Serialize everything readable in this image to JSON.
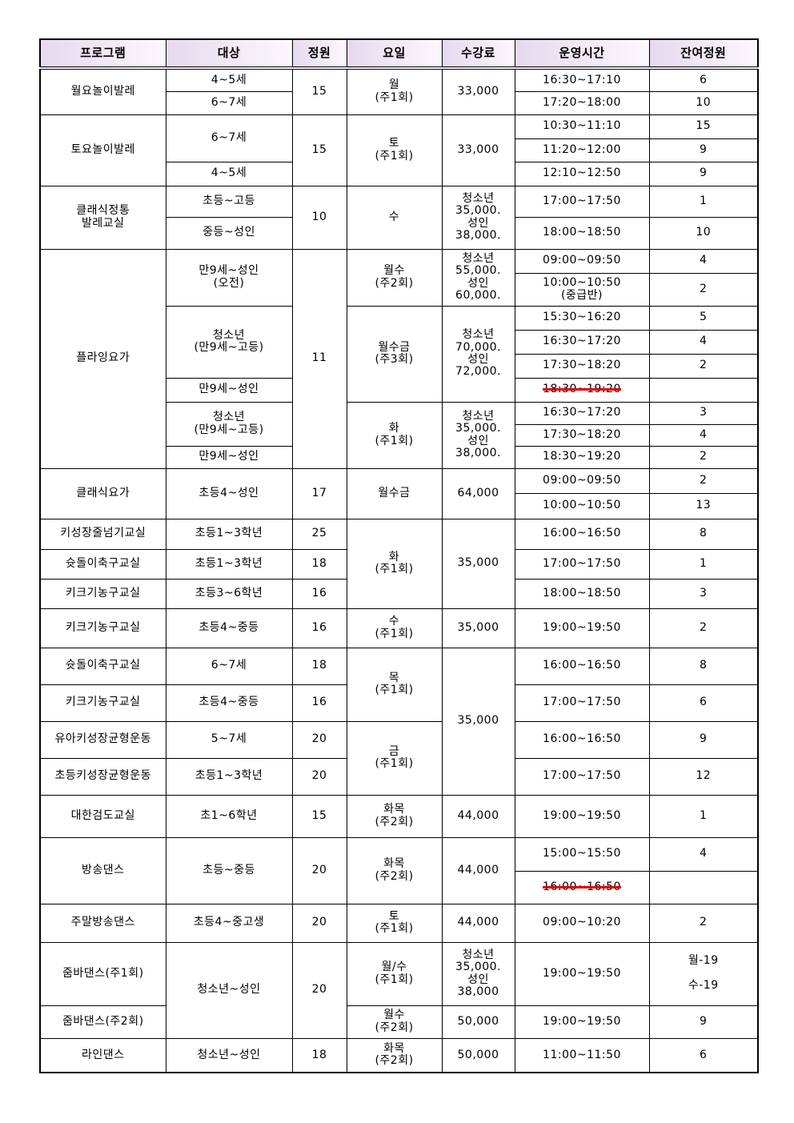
{
  "header": [
    "프로그램",
    "대상",
    "정원",
    "요일",
    "수강료",
    "운영시간",
    "잔여정원"
  ],
  "body": [
    [
      "월요놀이발레",
      "4~5세",
      "15",
      "월\n(주1회)",
      "33,000",
      "16:30~17:10",
      "6"
    ],
    [
      "6~7세",
      "17:20~18:00",
      "10"
    ],
    [
      "토요놀이발레",
      "6~7세",
      "15",
      "토\n(주1회)",
      "33,000",
      "10:30~11:10",
      "15"
    ],
    [
      "11:20~12:00",
      "9"
    ],
    [
      "4~5세",
      "12:10~12:50",
      "9"
    ],
    [
      "클래식정통\n발레교실",
      "초등~고등",
      "10",
      "수",
      "청소년\n35,000.\n성인\n38,000.",
      "17:00~17:50",
      "1"
    ],
    [
      "중등~성인",
      "18:00~18:50",
      "10"
    ],
    [
      "플라잉요가",
      "만9세~성인\n(오전)",
      "11",
      "월수\n(주2회)",
      "청소년\n55,000.\n성인\n60,000.",
      "09:00~09:50",
      "4"
    ],
    [
      "10:00~10:50\n(중급반)",
      "2"
    ],
    [
      "청소년\n(만9세~고등)",
      "월수금\n(주3회)",
      "청소년\n70,000.\n성인\n72,000.",
      "15:30~16:20",
      "5"
    ],
    [
      "16:30~17:20",
      "4"
    ],
    [
      "17:30~18:20",
      "2"
    ],
    [
      "만9세~성인",
      "18:30~19:20",
      ""
    ],
    [
      "청소년\n(만9세~고등)",
      "화\n(주1회)",
      "청소년\n35,000.\n성인\n38,000.",
      "16:30~17:20",
      "3"
    ],
    [
      "17:30~18:20",
      "4"
    ],
    [
      "만9세~성인",
      "18:30~19:20",
      "2"
    ],
    [
      "클래식요가",
      "초등4~성인",
      "17",
      "월수금",
      "64,000",
      "09:00~09:50",
      "2"
    ],
    [
      "10:00~10:50",
      "13"
    ],
    [
      "키성장줄넘기교실",
      "초등1~3학년",
      "25",
      "화\n(주1회)",
      "35,000",
      "16:00~16:50",
      "8"
    ],
    [
      "슛돌이축구교실",
      "초등1~3학년",
      "18",
      "17:00~17:50",
      "1"
    ],
    [
      "키크기농구교실",
      "초등3~6학년",
      "16",
      "18:00~18:50",
      "3"
    ],
    [
      "키크기농구교실",
      "초등4~중등",
      "16",
      "수\n(주1회)",
      "35,000",
      "19:00~19:50",
      "2"
    ],
    [
      "슛돌이축구교실",
      "6~7세",
      "18",
      "목\n(주1회)",
      "35,000",
      "16:00~16:50",
      "8"
    ],
    [
      "키크기농구교실",
      "초등4~중등",
      "16",
      "17:00~17:50",
      "6"
    ],
    [
      "유아키성장균형운동",
      "5~7세",
      "20",
      "금\n(주1회)",
      "16:00~16:50",
      "9"
    ],
    [
      "초등키성장균형운동",
      "초등1~3학년",
      "20",
      "17:00~17:50",
      "12"
    ],
    [
      "대한검도교실",
      "초1~6학년",
      "15",
      "화목\n(주2회)",
      "44,000",
      "19:00~19:50",
      "1"
    ],
    [
      "방송댄스",
      "초등~중등",
      "20",
      "화목\n(주2회)",
      "44,000",
      "15:00~15:50",
      "4"
    ],
    [
      "16:00~16:50",
      ""
    ],
    [
      "주말방송댄스",
      "초등4~중고생",
      "20",
      "토\n(주1회)",
      "44,000",
      "09:00~10:20",
      "2"
    ],
    [
      "줌바댄스(주1회)",
      "청소년~성인",
      "20",
      "월/수\n(주1회)",
      "청소년\n35,000.\n성인\n38,000",
      "19:00~19:50",
      "월-19\n\n수-19"
    ],
    [
      "줌바댄스(주2회)",
      "월수\n(주2회)",
      "50,000",
      "19:00~19:50",
      "9"
    ],
    [
      "라인댄스",
      "청소년~성인",
      "18",
      "화목\n(주2회)",
      "50,000",
      "11:00~11:50",
      "6"
    ]
  ],
  "colors": {
    "header_bg": "#e6d9ef",
    "strike": "#e00000"
  }
}
